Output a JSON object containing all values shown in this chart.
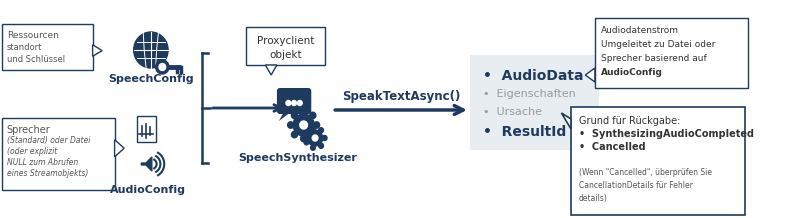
{
  "bg_color": "#ffffff",
  "dark_blue": "#1e3a5f",
  "medium_blue": "#2e5f8a",
  "light_gray_box": "#e8edf2",
  "box_border": "#1e3a5f",
  "callout_bg": "#ffffff",
  "speech_config_label": "SpeechConfig",
  "audio_config_label": "AudioConfig",
  "synthesizer_label": "SpeechSynthesizer",
  "method_label": "SpeakTextAsync()",
  "left_callout1_lines": [
    "Ressourcen",
    "standort",
    "und Schlüssel"
  ],
  "left_callout2_lines": [
    "Sprecher",
    "(Standard) oder Datei",
    "(oder explizit",
    "NULL zum Abrufen",
    "eines Streamobjekts)"
  ],
  "proxy_callout_lines": [
    "Proxyclient",
    "objekt"
  ],
  "result_items": [
    "AudioData",
    "Eigenschaften",
    "Ursache",
    "ResultId"
  ],
  "result_bold": [
    true,
    false,
    false,
    true
  ],
  "top_right_callout_lines": [
    "Audiodatenstrom",
    "Umgeleitet zu Datei oder",
    "Sprecher basierend auf",
    "AudioConfig"
  ],
  "bottom_right_callout_lines": [
    "Grund für Rückgabe:",
    "SynthesizingAudioCompleted",
    "Cancelled",
    "",
    "(Wenn \"Cancelled\", überprüfen Sie",
    "CancellationDetails für Fehler",
    "details)"
  ]
}
